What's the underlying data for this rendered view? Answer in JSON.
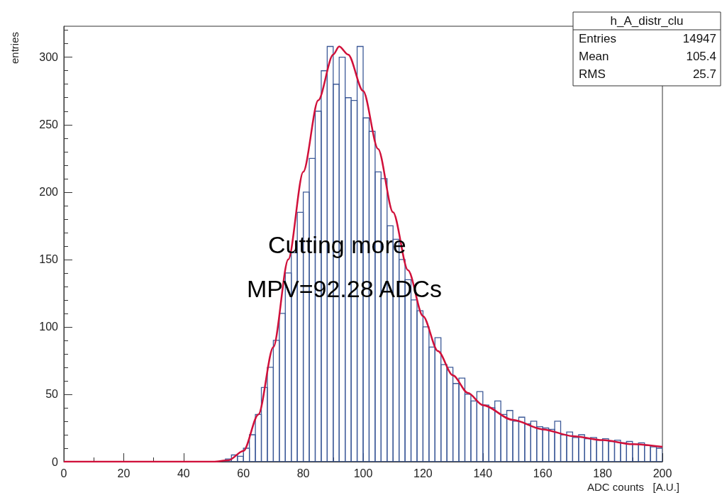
{
  "chart_data": {
    "type": "histogram",
    "xlabel": "ADC counts   [A.U.]",
    "ylabel": "entries",
    "bins": [
      0,
      2,
      4,
      6,
      8,
      10,
      12,
      14,
      16,
      18,
      20,
      22,
      24,
      26,
      28,
      30,
      32,
      34,
      36,
      38,
      40,
      42,
      44,
      46,
      48,
      50,
      52,
      54,
      56,
      58,
      60,
      62,
      64,
      66,
      68,
      70,
      72,
      74,
      76,
      78,
      80,
      82,
      84,
      86,
      88,
      90,
      92,
      94,
      96,
      98,
      100,
      102,
      104,
      106,
      108,
      110,
      112,
      114,
      116,
      118,
      120,
      122,
      124,
      126,
      128,
      130,
      132,
      134,
      136,
      138,
      140,
      142,
      144,
      146,
      148,
      150,
      152,
      154,
      156,
      158,
      160,
      162,
      164,
      166,
      168,
      170,
      172,
      174,
      176,
      178,
      180,
      182,
      184,
      186,
      188,
      190,
      192,
      194,
      196,
      198,
      200
    ],
    "series": [
      {
        "color": "#3d5a98",
        "values": [
          0,
          0,
          0,
          0,
          0,
          0,
          0,
          0,
          0,
          0,
          0,
          0,
          0,
          0,
          0,
          0,
          0,
          0,
          0,
          0,
          0,
          0,
          0,
          0,
          0,
          0,
          0,
          2,
          5,
          4,
          10,
          20,
          35,
          55,
          70,
          90,
          110,
          140,
          155,
          185,
          200,
          225,
          260,
          290,
          308,
          280,
          300,
          270,
          268,
          308,
          255,
          245,
          215,
          210,
          175,
          165,
          150,
          135,
          120,
          112,
          100,
          85,
          92,
          72,
          70,
          58,
          62,
          50,
          45,
          52,
          42,
          40,
          45,
          35,
          38,
          30,
          33,
          28,
          30,
          26,
          25,
          24,
          30,
          20,
          22,
          18,
          20,
          17,
          18,
          16,
          17,
          15,
          16,
          14,
          15,
          13,
          14,
          12,
          11,
          10
        ]
      },
      {
        "type": "line",
        "color": "#d0103a",
        "x": [
          0,
          50,
          55,
          60,
          65,
          70,
          75,
          80,
          85,
          90,
          92,
          95,
          100,
          105,
          110,
          115,
          120,
          125,
          130,
          135,
          140,
          150,
          160,
          170,
          180,
          190,
          200
        ],
        "values": [
          0,
          0,
          1,
          8,
          35,
          85,
          150,
          215,
          268,
          302,
          308,
          302,
          275,
          232,
          185,
          142,
          108,
          82,
          64,
          51,
          42,
          31,
          24,
          19,
          16,
          13,
          11
        ]
      }
    ],
    "xlim": [
      0,
      200
    ],
    "xticks": [
      0,
      20,
      40,
      60,
      80,
      100,
      120,
      140,
      160,
      180,
      200
    ],
    "ylim": [
      0,
      323
    ],
    "yticks": [
      0,
      50,
      100,
      150,
      200,
      250,
      300
    ],
    "grid": false,
    "annotations": [
      "Cutting more",
      "MPV=92.28 ADCs",
      "h_A_distr_clu",
      "Entries 14947",
      "Mean 105.4",
      "RMS 25.7"
    ]
  }
}
